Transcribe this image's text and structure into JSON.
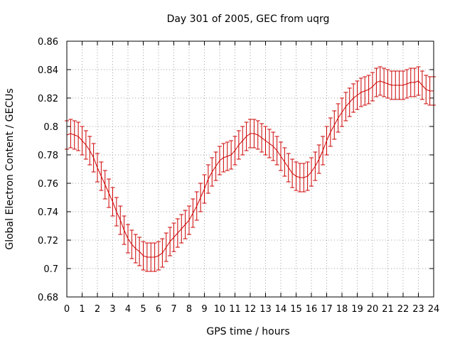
{
  "chart_data": {
    "type": "line",
    "title": "Day 301 of 2005, GEC from uqrg",
    "xlabel": "GPS time / hours",
    "ylabel": "Global Electron Content / GECUs",
    "xlim": [
      0,
      24
    ],
    "ylim": [
      0.68,
      0.86
    ],
    "x_ticks": [
      "0",
      "1",
      "2",
      "3",
      "4",
      "5",
      "6",
      "7",
      "8",
      "9",
      "10",
      "11",
      "12",
      "13",
      "14",
      "15",
      "16",
      "17",
      "18",
      "19",
      "20",
      "21",
      "22",
      "23",
      "24"
    ],
    "y_ticks": [
      "0.68",
      "0.7",
      "0.72",
      "0.74",
      "0.76",
      "0.78",
      "0.8",
      "0.82",
      "0.84",
      "0.86"
    ],
    "grid": true,
    "error_bar_halfwidth": 0.01,
    "series_color": "#cc0000",
    "series": [
      {
        "x": [
          0,
          0.25,
          0.5,
          0.75,
          1,
          1.25,
          1.5,
          1.75,
          2,
          2.25,
          2.5,
          2.75,
          3,
          3.25,
          3.5,
          3.75,
          4,
          4.25,
          4.5,
          4.75,
          5,
          5.25,
          5.5,
          5.75,
          6,
          6.25,
          6.5,
          6.75,
          7,
          7.25,
          7.5,
          7.75,
          8,
          8.25,
          8.5,
          8.75,
          9,
          9.25,
          9.5,
          9.75,
          10,
          10.25,
          10.5,
          10.75,
          11,
          11.25,
          11.5,
          11.75,
          12,
          12.25,
          12.5,
          12.75,
          13,
          13.25,
          13.5,
          13.75,
          14,
          14.25,
          14.5,
          14.75,
          15,
          15.25,
          15.5,
          15.75,
          16,
          16.25,
          16.5,
          16.75,
          17,
          17.25,
          17.5,
          17.75,
          18,
          18.25,
          18.5,
          18.75,
          19,
          19.25,
          19.5,
          19.75,
          20,
          20.25,
          20.5,
          20.75,
          21,
          21.25,
          21.5,
          21.75,
          22,
          22.25,
          22.5,
          22.75,
          23,
          23.25,
          23.5,
          23.75,
          24
        ],
        "y": [
          0.794,
          0.795,
          0.794,
          0.793,
          0.79,
          0.787,
          0.783,
          0.778,
          0.771,
          0.765,
          0.759,
          0.753,
          0.747,
          0.74,
          0.734,
          0.727,
          0.721,
          0.717,
          0.714,
          0.712,
          0.709,
          0.708,
          0.708,
          0.708,
          0.709,
          0.711,
          0.715,
          0.719,
          0.722,
          0.725,
          0.728,
          0.731,
          0.734,
          0.739,
          0.744,
          0.75,
          0.756,
          0.763,
          0.768,
          0.772,
          0.776,
          0.778,
          0.779,
          0.78,
          0.783,
          0.787,
          0.79,
          0.793,
          0.795,
          0.795,
          0.794,
          0.792,
          0.79,
          0.788,
          0.786,
          0.783,
          0.779,
          0.775,
          0.771,
          0.767,
          0.765,
          0.764,
          0.764,
          0.765,
          0.768,
          0.772,
          0.777,
          0.783,
          0.79,
          0.796,
          0.801,
          0.806,
          0.81,
          0.814,
          0.817,
          0.82,
          0.822,
          0.824,
          0.825,
          0.826,
          0.828,
          0.831,
          0.832,
          0.831,
          0.83,
          0.829,
          0.829,
          0.829,
          0.829,
          0.83,
          0.831,
          0.831,
          0.832,
          0.829,
          0.826,
          0.825,
          0.825
        ]
      }
    ]
  }
}
